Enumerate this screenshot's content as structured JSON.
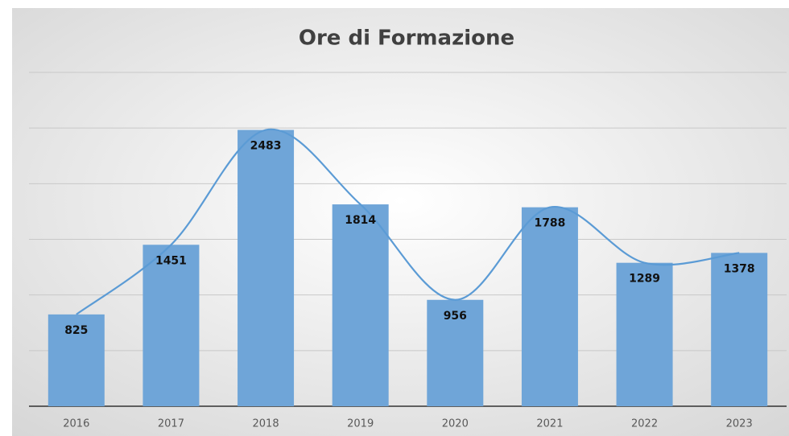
{
  "chart_data": {
    "type": "bar",
    "title": "Ore di Formazione",
    "categories": [
      "2016",
      "2017",
      "2018",
      "2019",
      "2020",
      "2021",
      "2022",
      "2023"
    ],
    "values": [
      825,
      1451,
      2483,
      1814,
      956,
      1788,
      1289,
      1378
    ],
    "color": "#6fa5d8",
    "line_color": "#5b9bd5",
    "smooth_line": true,
    "ylim": [
      0,
      3000
    ],
    "yticks": [
      0,
      500,
      1000,
      1500,
      2000,
      2500,
      3000
    ],
    "grid": true
  }
}
